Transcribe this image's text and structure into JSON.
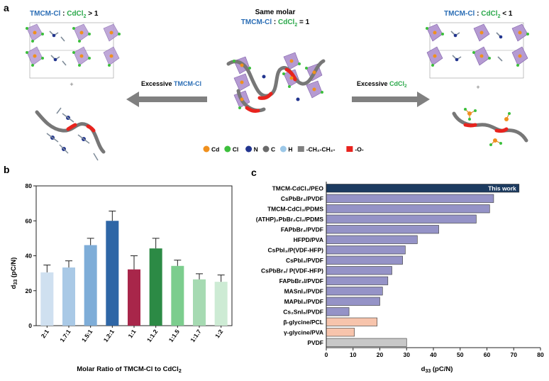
{
  "panel_a": {
    "letter": "a",
    "left_ratio": {
      "a": "TMCM-Cl",
      "sep": " : ",
      "b": "CdCl",
      "sub": "2",
      "rel": " > 1"
    },
    "center_title": "Same molar",
    "center_ratio": {
      "a": "TMCM-Cl",
      "sep": " : ",
      "b": "CdCl",
      "sub": "2",
      "rel": " = 1"
    },
    "right_ratio": {
      "a": "TMCM-Cl",
      "sep": " : ",
      "b": "CdCl",
      "sub": "2",
      "rel": " < 1"
    },
    "left_arrow": {
      "prefix": "Excessive ",
      "species": "TMCM-Cl"
    },
    "right_arrow": {
      "prefix": "Excessive ",
      "species": "CdCl",
      "sub": "2"
    },
    "plus": "+",
    "legend": [
      {
        "label": "Cd",
        "color": "#f0901e"
      },
      {
        "label": "Cl",
        "color": "#3cbf3c"
      },
      {
        "label": "N",
        "color": "#22358f"
      },
      {
        "label": "C",
        "color": "#6a6a6a"
      },
      {
        "label": "H",
        "color": "#9cc8e8"
      },
      {
        "label": "-CH₂-CH₂-",
        "color": "#808080"
      },
      {
        "label": "-O-",
        "color": "#e8231e"
      }
    ]
  },
  "chart_data": [
    {
      "panel": "b",
      "type": "bar",
      "title": "",
      "xlabel": "Molar Ratio of TMCM-Cl to CdCl₂",
      "ylabel": "d33 (pC/N)",
      "ylim": [
        0,
        80
      ],
      "yticks": [
        0,
        20,
        40,
        60,
        80
      ],
      "categories": [
        "2:1",
        "1.7:1",
        "1.5:1",
        "1.2:1",
        "1:1",
        "1:1.2",
        "1:1.5",
        "1:1.7",
        "1:2"
      ],
      "values": [
        30.5,
        33.3,
        46.1,
        60.0,
        32.2,
        44.2,
        34.2,
        26.5,
        25.1
      ],
      "errors": [
        4.2,
        3.8,
        3.9,
        5.6,
        7.8,
        5.8,
        3.3,
        3.2,
        3.9
      ],
      "colors": [
        "#cfe0f0",
        "#a9c9e6",
        "#7eadd8",
        "#2e66a6",
        "#a8264a",
        "#2c8a45",
        "#7ccd8e",
        "#a6dab2",
        "#cdebd4"
      ]
    },
    {
      "panel": "c",
      "type": "bar",
      "orientation": "horizontal",
      "xlabel": "d33 (pC/N)",
      "xlim": [
        0,
        80
      ],
      "xticks": [
        0,
        10,
        20,
        30,
        40,
        50,
        60,
        70,
        80
      ],
      "categories": [
        "TMCM-CdCl₃/PEO",
        "CsPbBr₃/PVDF",
        "TMCM-CdCl₃/PDMS",
        "(ATHP)₂PbBr₂Cl₂/PDMS",
        "FAPbBr₃/PVDF",
        "HFPD/PVA",
        "CsPbI₃/P(VDF-HFP)",
        "CsPbI₃/PVDF",
        "CsPbBr₃/ P(VDF-HFP)",
        "FAPbBr₂I/PVDF",
        "MASnI₃/PVDF",
        "MAPbI₃/PVDF",
        "Cs₂SnI₆/PVDF",
        "β-glycine/PCL",
        "γ-glycine/PVA",
        "PVDF"
      ],
      "values": [
        72,
        62.5,
        61,
        56,
        42,
        34,
        29.5,
        28.5,
        24.5,
        23,
        21,
        20,
        8.5,
        19,
        10.5,
        30
      ],
      "colors": [
        "#1c3b60",
        "#9593c7",
        "#9593c7",
        "#9593c7",
        "#9593c7",
        "#9593c7",
        "#9593c7",
        "#9593c7",
        "#9593c7",
        "#9593c7",
        "#9593c7",
        "#9593c7",
        "#9593c7",
        "#f7c4ac",
        "#f7c4ac",
        "#c8c8c8"
      ],
      "annotation": "This work"
    }
  ],
  "panel_b": {
    "letter": "b",
    "ylabel_main": "d",
    "ylabel_sub": "33",
    "ylabel_unit": " (pC/N)",
    "xlabel_main": "Molar Ratio of TMCM-Cl to CdCl",
    "xlabel_sub": "2"
  },
  "panel_c": {
    "letter": "c",
    "xlabel_main": "d",
    "xlabel_sub": "33",
    "xlabel_unit": " (pC/N)"
  }
}
